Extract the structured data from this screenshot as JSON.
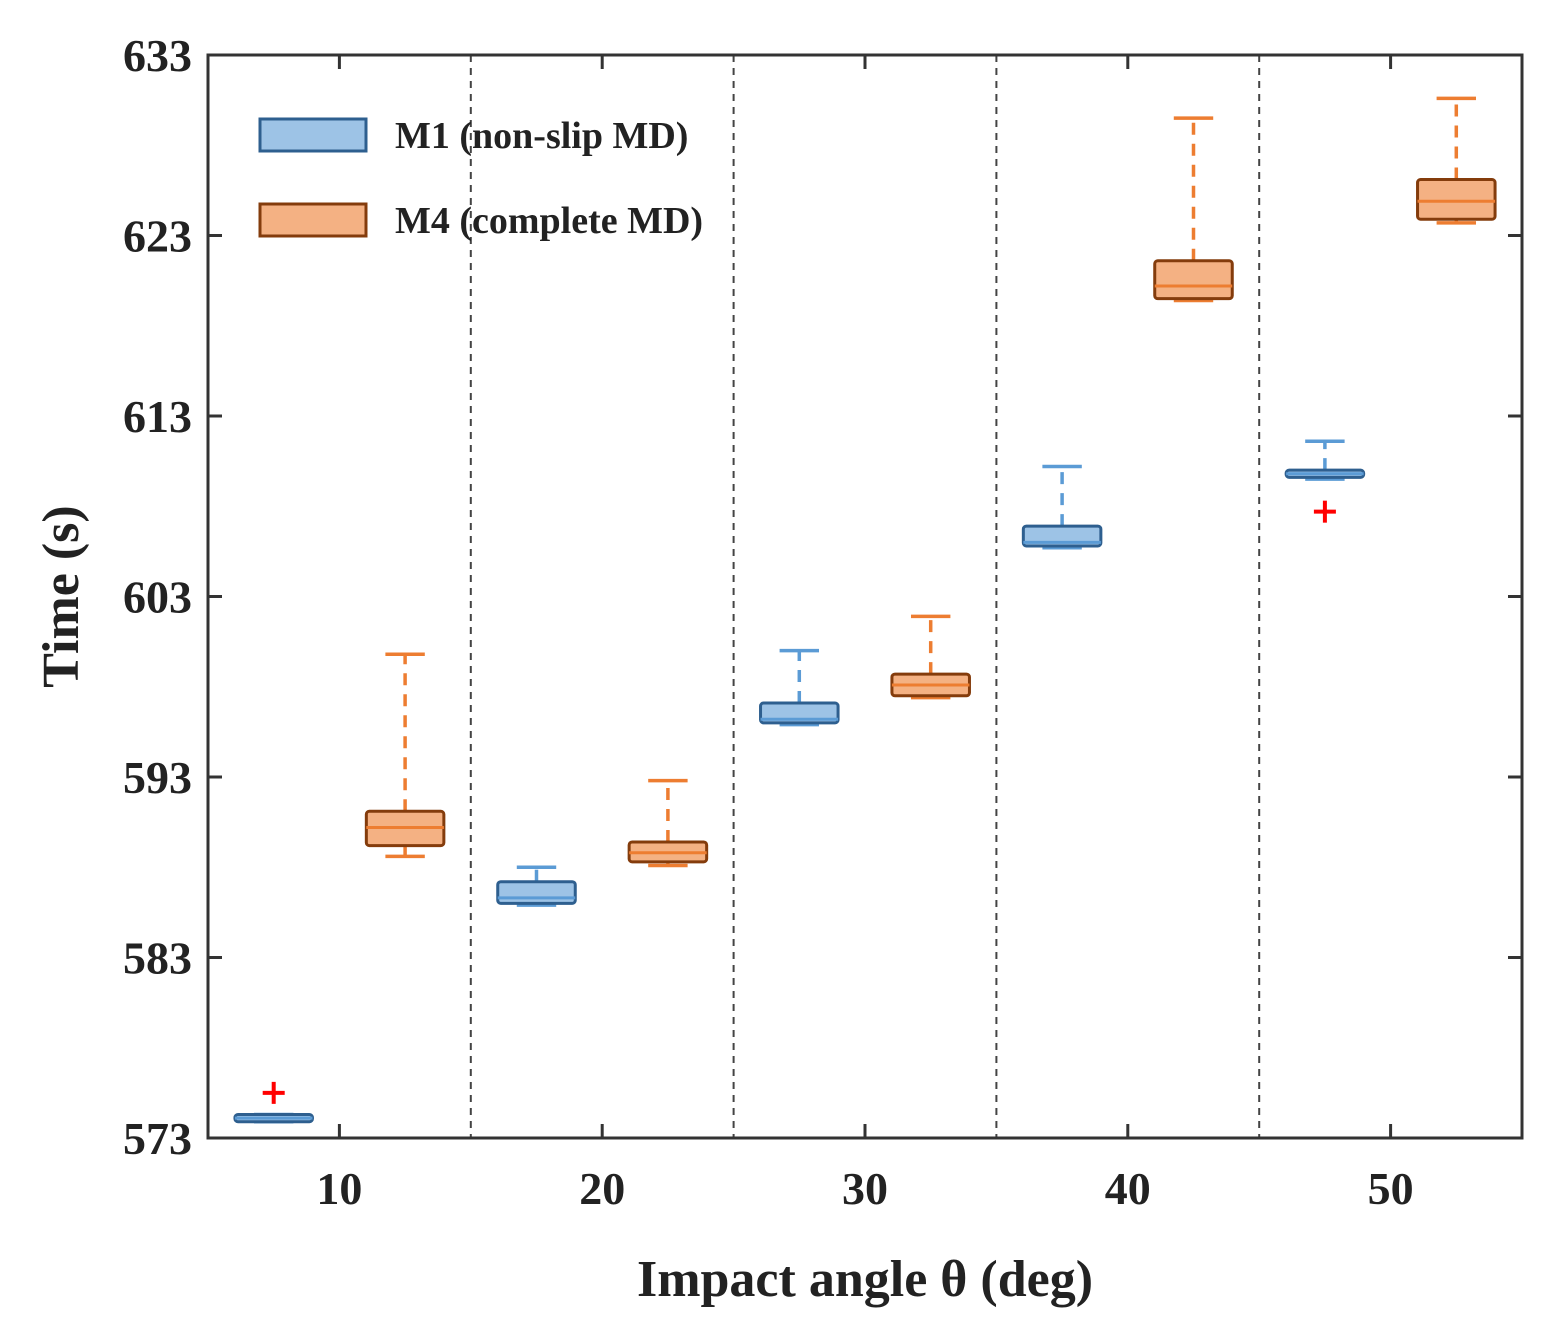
{
  "chart_data": {
    "type": "boxplot",
    "xlabel": "Impact angle θ (deg)",
    "ylabel": "Time (s)",
    "ylim": [
      573,
      633
    ],
    "yticks": [
      573,
      583,
      593,
      603,
      613,
      623,
      633
    ],
    "categories": [
      "10",
      "20",
      "30",
      "40",
      "50"
    ],
    "grid": "vertical dashed separators between groups",
    "legend_position": "top-left",
    "series": [
      {
        "name": "M1 (non-slip MD)",
        "color": "#9dc3e6",
        "edge_color": "#2e5f8f",
        "whisker_color": "#5b9bd5",
        "boxes": [
          {
            "category": "10",
            "whisker_low": 573.9,
            "q1": 573.9,
            "median": 574.1,
            "q3": 574.3,
            "whisker_high": 574.3,
            "outliers": [
              575.5
            ]
          },
          {
            "category": "20",
            "whisker_low": 585.9,
            "q1": 586.0,
            "median": 586.3,
            "q3": 587.2,
            "whisker_high": 588.0,
            "outliers": []
          },
          {
            "category": "30",
            "whisker_low": 595.9,
            "q1": 596.0,
            "median": 596.2,
            "q3": 597.1,
            "whisker_high": 600.0,
            "outliers": []
          },
          {
            "category": "40",
            "whisker_low": 605.7,
            "q1": 605.8,
            "median": 606.0,
            "q3": 606.9,
            "whisker_high": 610.2,
            "outliers": []
          },
          {
            "category": "50",
            "whisker_low": 609.5,
            "q1": 609.6,
            "median": 609.8,
            "q3": 610.0,
            "whisker_high": 611.6,
            "outliers": [
              607.7
            ]
          }
        ]
      },
      {
        "name": "M4 (complete MD)",
        "color": "#f4b183",
        "edge_color": "#843c0c",
        "whisker_color": "#ed7d31",
        "boxes": [
          {
            "category": "10",
            "whisker_low": 588.6,
            "q1": 589.2,
            "median": 590.2,
            "q3": 591.1,
            "whisker_high": 599.8,
            "outliers": []
          },
          {
            "category": "20",
            "whisker_low": 588.1,
            "q1": 588.3,
            "median": 588.8,
            "q3": 589.4,
            "whisker_high": 592.8,
            "outliers": []
          },
          {
            "category": "30",
            "whisker_low": 597.4,
            "q1": 597.5,
            "median": 598.1,
            "q3": 598.7,
            "whisker_high": 601.9,
            "outliers": []
          },
          {
            "category": "40",
            "whisker_low": 619.4,
            "q1": 619.5,
            "median": 620.2,
            "q3": 621.6,
            "whisker_high": 629.5,
            "outliers": []
          },
          {
            "category": "50",
            "whisker_low": 623.7,
            "q1": 623.9,
            "median": 624.9,
            "q3": 626.1,
            "whisker_high": 630.6,
            "outliers": []
          }
        ]
      }
    ],
    "outlier_color": "#ff0000"
  }
}
